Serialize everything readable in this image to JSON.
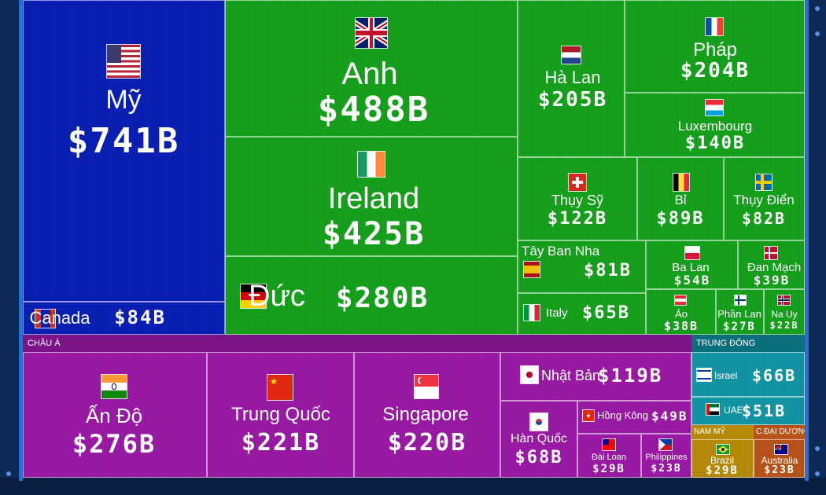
{
  "colors": {
    "north_america": "#0a1fb4",
    "europe": "#15a11c",
    "asia": "#9a1aa6",
    "asia_header": "#7a1488",
    "middle_east": "#1295a5",
    "middle_east_header": "#0d6f7c",
    "latin_america": "#b78a07",
    "oceania": "#b8541a"
  },
  "chart_data": {
    "type": "treemap",
    "unit": "$B",
    "regions": [
      {
        "name": "",
        "color": "#0a1fb4"
      },
      {
        "name": "",
        "color": "#15a11c"
      },
      {
        "name": "CHÂU Á",
        "color": "#9a1aa6"
      },
      {
        "name": "TRUNG ĐÔNG",
        "color": "#1295a5"
      },
      {
        "name": "NAM MỸ",
        "color": "#b78a07"
      },
      {
        "name": "C.ĐẠI DƯƠNG",
        "color": "#b8541a"
      }
    ],
    "items": [
      {
        "name": "Mỹ",
        "value": 741,
        "label": "$741B",
        "region": 0,
        "flag": "us"
      },
      {
        "name": "Canada",
        "value": 84,
        "label": "$84B",
        "region": 0,
        "flag": "ca"
      },
      {
        "name": "Anh",
        "value": 488,
        "label": "$488B",
        "region": 1,
        "flag": "gb"
      },
      {
        "name": "Ireland",
        "value": 425,
        "label": "$425B",
        "region": 1,
        "flag": "ie"
      },
      {
        "name": "Đức",
        "value": 280,
        "label": "$280B",
        "region": 1,
        "flag": "de"
      },
      {
        "name": "Hà Lan",
        "value": 205,
        "label": "$205B",
        "region": 1,
        "flag": "nl"
      },
      {
        "name": "Pháp",
        "value": 204,
        "label": "$204B",
        "region": 1,
        "flag": "fr"
      },
      {
        "name": "Luxembourg",
        "value": 140,
        "label": "$140B",
        "region": 1,
        "flag": "lu"
      },
      {
        "name": "Thụy Sỹ",
        "value": 122,
        "label": "$122B",
        "region": 1,
        "flag": "ch"
      },
      {
        "name": "Bỉ",
        "value": 89,
        "label": "$89B",
        "region": 1,
        "flag": "be"
      },
      {
        "name": "Thụy Điển",
        "value": 82,
        "label": "$82B",
        "region": 1,
        "flag": "se"
      },
      {
        "name": "Tây Ban Nha",
        "value": 81,
        "label": "$81B",
        "region": 1,
        "flag": "es"
      },
      {
        "name": "Italy",
        "value": 65,
        "label": "$65B",
        "region": 1,
        "flag": "it"
      },
      {
        "name": "Ba Lan",
        "value": 54,
        "label": "$54B",
        "region": 1,
        "flag": "pl"
      },
      {
        "name": "Đan Mạch",
        "value": 39,
        "label": "$39B",
        "region": 1,
        "flag": "dk"
      },
      {
        "name": "Áo",
        "value": 38,
        "label": "$38B",
        "region": 1,
        "flag": "at"
      },
      {
        "name": "Phần Lan",
        "value": 27,
        "label": "$27B",
        "region": 1,
        "flag": "fi"
      },
      {
        "name": "Na Uy",
        "value": 22,
        "label": "$22B",
        "region": 1,
        "flag": "no"
      },
      {
        "name": "Ấn Độ",
        "value": 276,
        "label": "$276B",
        "region": 2,
        "flag": "in"
      },
      {
        "name": "Trung Quốc",
        "value": 221,
        "label": "$221B",
        "region": 2,
        "flag": "cn"
      },
      {
        "name": "Singapore",
        "value": 220,
        "label": "$220B",
        "region": 2,
        "flag": "sg"
      },
      {
        "name": "Nhật Bản",
        "value": 119,
        "label": "$119B",
        "region": 2,
        "flag": "jp"
      },
      {
        "name": "Hàn Quốc",
        "value": 68,
        "label": "$68B",
        "region": 2,
        "flag": "kr"
      },
      {
        "name": "Hồng Kông",
        "value": 49,
        "label": "$49B",
        "region": 2,
        "flag": "hk"
      },
      {
        "name": "Đài Loan",
        "value": 29,
        "label": "$29B",
        "region": 2,
        "flag": "tw"
      },
      {
        "name": "Philippines",
        "value": 23,
        "label": "$23B",
        "region": 2,
        "flag": "ph"
      },
      {
        "name": "Israel",
        "value": 66,
        "label": "$66B",
        "region": 3,
        "flag": "il"
      },
      {
        "name": "UAE",
        "value": 51,
        "label": "$51B",
        "region": 3,
        "flag": "ae"
      },
      {
        "name": "Brazil",
        "value": 29,
        "label": "$29B",
        "region": 4,
        "flag": "br"
      },
      {
        "name": "Australia",
        "value": 23,
        "label": "$23B",
        "region": 5,
        "flag": "au"
      }
    ]
  }
}
